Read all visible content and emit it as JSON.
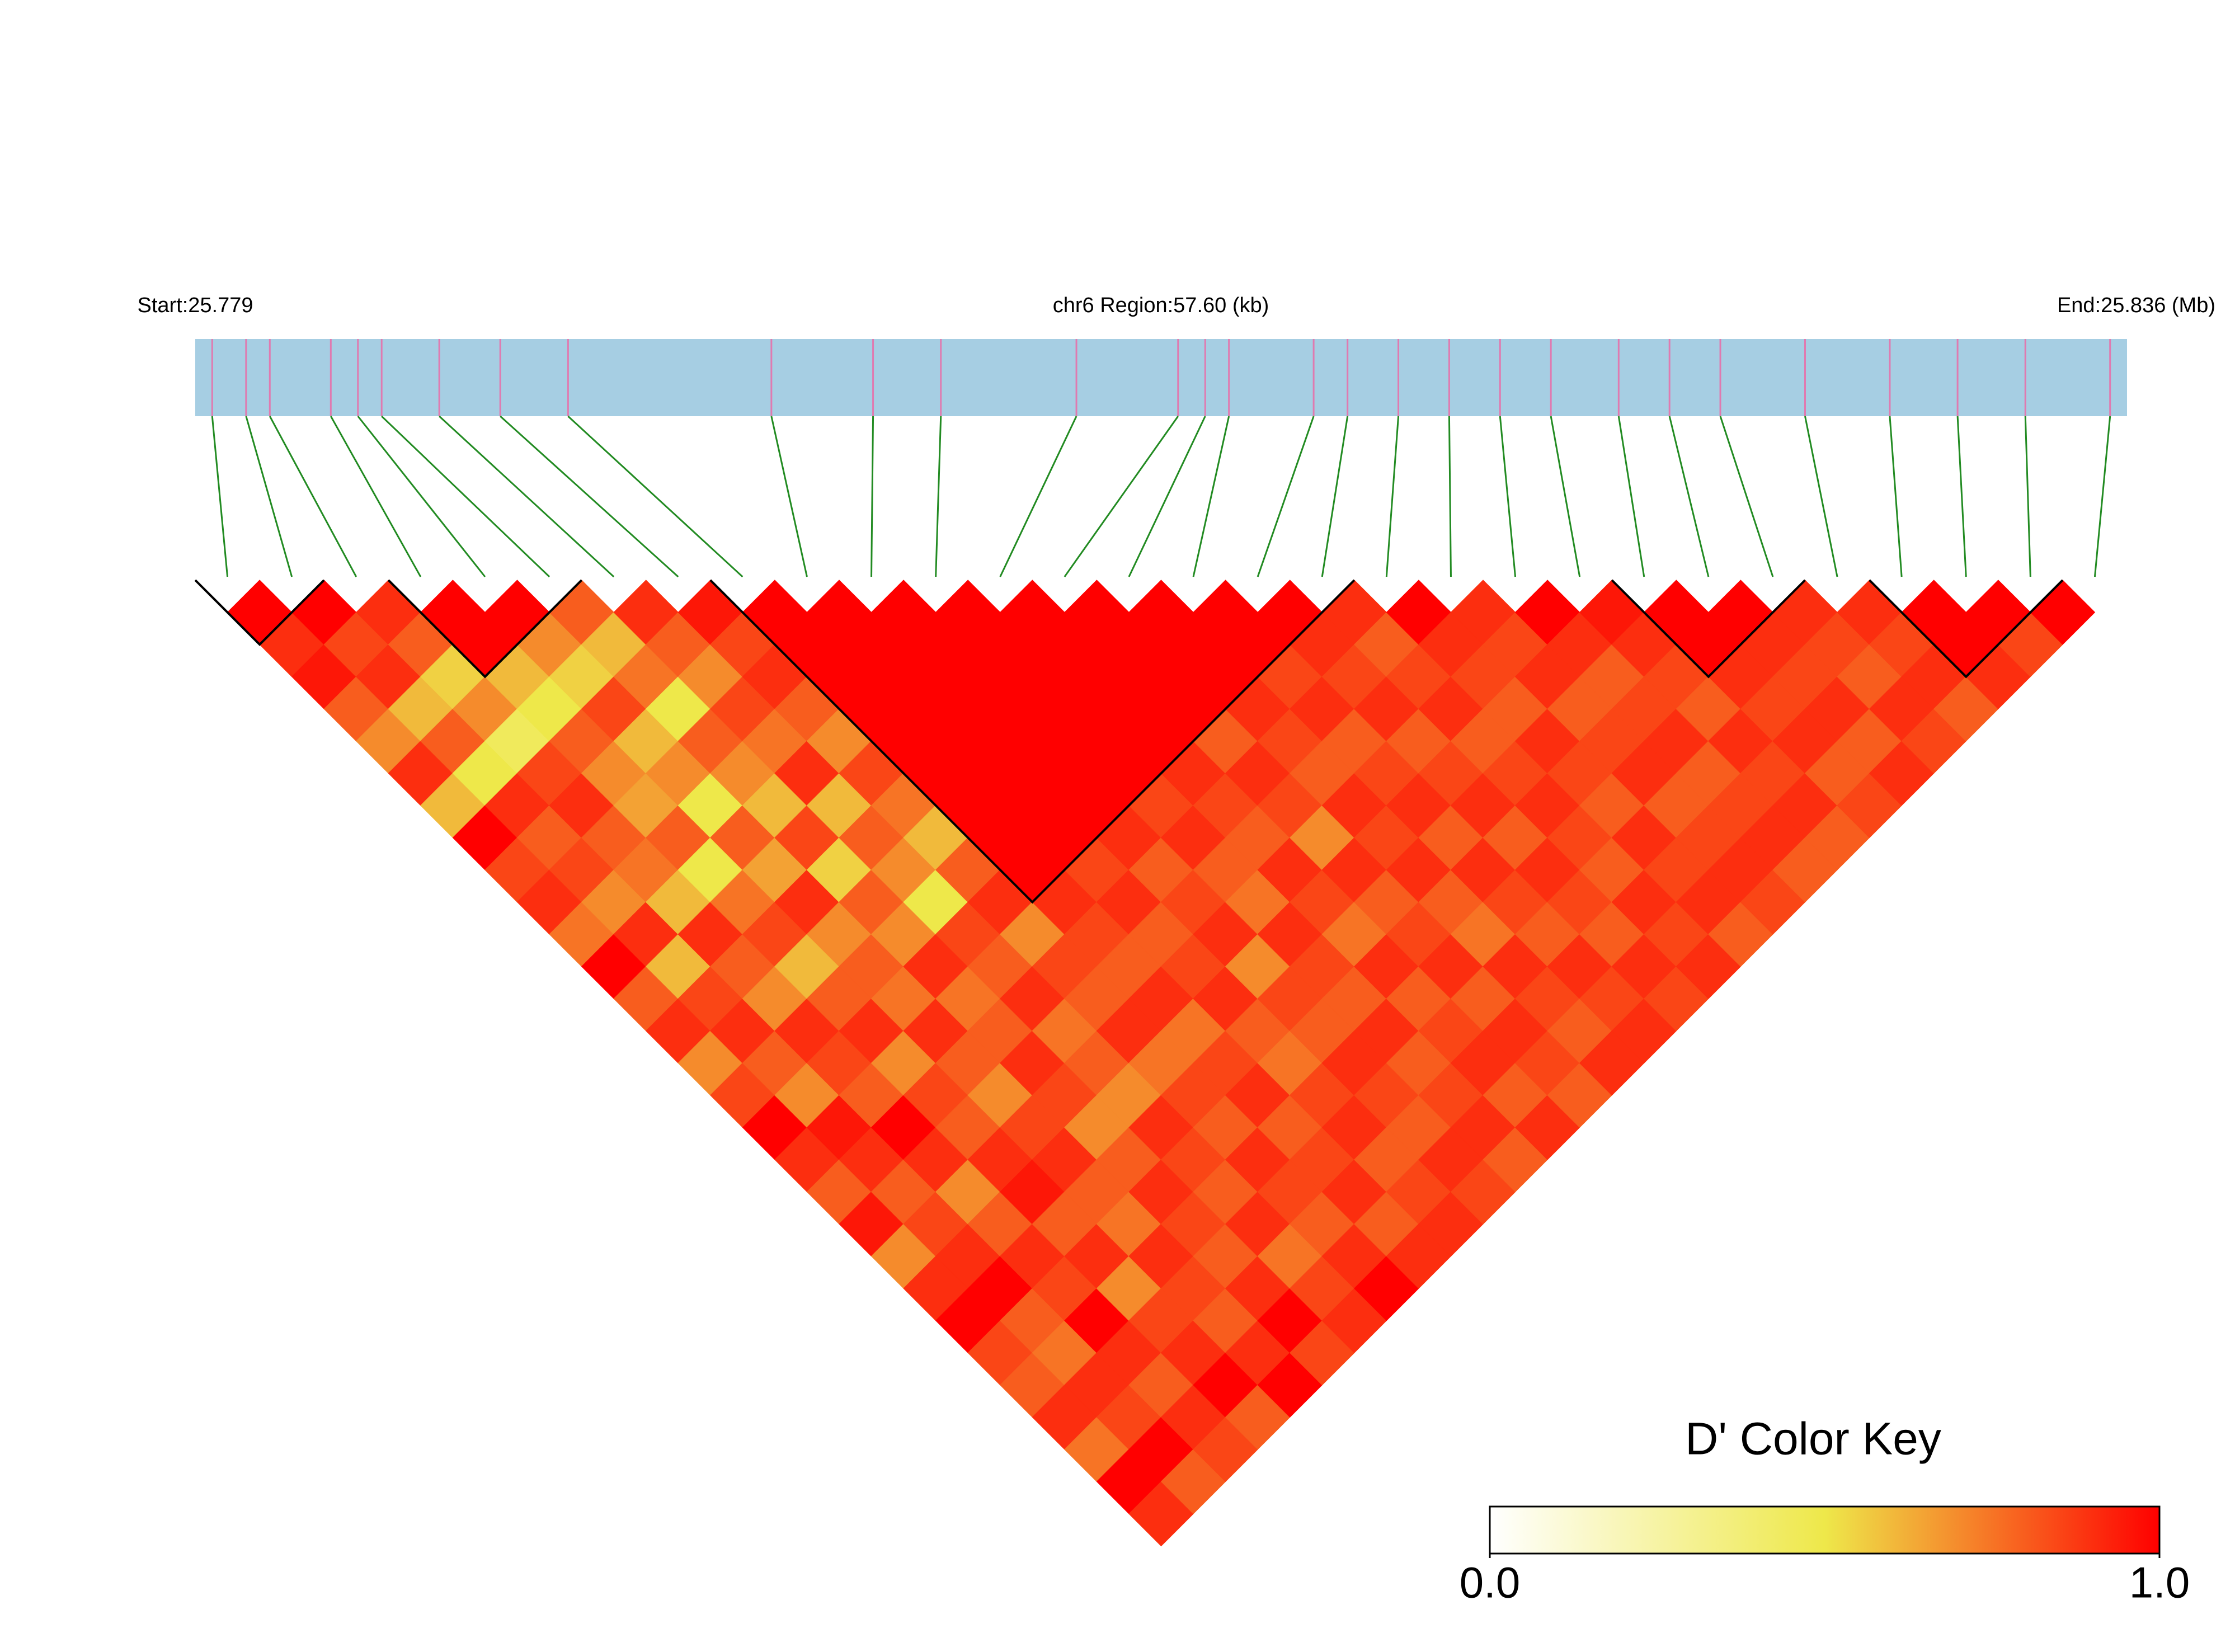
{
  "chart_data": {
    "type": "ld-heatmap",
    "start_label": "Start:25.779",
    "region_label": "chr6 Region:57.60 (kb)",
    "end_label": "End:25.836 (Mb)",
    "xlim": [
      25.779,
      25.836
    ],
    "positions": [
      25.7795,
      25.7805,
      25.7812,
      25.783,
      25.7838,
      25.7845,
      25.7862,
      25.788,
      25.79,
      25.796,
      25.799,
      25.801,
      25.805,
      25.808,
      25.8088,
      25.8095,
      25.812,
      25.813,
      25.8145,
      25.816,
      25.8175,
      25.819,
      25.821,
      25.8225,
      25.824,
      25.8265,
      25.829,
      25.831,
      25.833,
      25.8355
    ],
    "dprime": [
      [
        1,
        0.9,
        0.95,
        0.8,
        0.7,
        0.9,
        0.6,
        1,
        0.85,
        0.9,
        0.75,
        1,
        0.8,
        0.9,
        0.7,
        0.85,
        1,
        0.9,
        0.8,
        0.95,
        0.7,
        0.9,
        1,
        0.85,
        0.8,
        0.9,
        0.75,
        1,
        0.9
      ],
      [
        1,
        0.85,
        0.9,
        0.6,
        0.8,
        0.5,
        0.9,
        0.8,
        0.85,
        0.7,
        0.9,
        0.6,
        0.85,
        0.9,
        0.8,
        0.7,
        0.95,
        0.9,
        0.8,
        0.85,
        0.9,
        1,
        0.8,
        0.75,
        0.9,
        0.85,
        1,
        0.8
      ],
      [
        0.9,
        0.8,
        0.55,
        0.7,
        0.45,
        0.85,
        0.9,
        0.8,
        0.75,
        0.6,
        0.9,
        0.8,
        0.7,
        0.9,
        0.85,
        0.8,
        1,
        0.9,
        0.7,
        0.8,
        0.9,
        0.85,
        1,
        0.9,
        0.8,
        0.9,
        0.85
      ],
      [
        1,
        1,
        0.6,
        0.5,
        0.8,
        0.7,
        0.65,
        0.8,
        0.5,
        0.75,
        0.85,
        0.6,
        0.8,
        0.9,
        0.7,
        0.85,
        0.8,
        0.9,
        0.95,
        0.8,
        0.9,
        0.7,
        0.85,
        0.9,
        1,
        0.8
      ],
      [
        1,
        0.7,
        0.55,
        0.85,
        0.6,
        0.7,
        0.5,
        0.8,
        0.65,
        0.9,
        0.7,
        0.8,
        0.75,
        0.9,
        0.8,
        0.7,
        0.85,
        0.9,
        0.8,
        0.75,
        0.9,
        0.85,
        0.8,
        0.9,
        1
      ],
      [
        0.8,
        0.6,
        0.75,
        0.5,
        0.8,
        0.7,
        0.6,
        0.85,
        0.55,
        0.8,
        0.7,
        0.9,
        0.75,
        0.8,
        0.9,
        0.85,
        0.7,
        0.8,
        0.9,
        0.85,
        0.8,
        0.9,
        1,
        0.85
      ],
      [
        0.9,
        0.8,
        0.7,
        0.85,
        0.75,
        0.9,
        0.6,
        0.8,
        0.7,
        0.5,
        0.85,
        0.8,
        0.9,
        0.75,
        0.8,
        0.7,
        0.9,
        0.85,
        0.8,
        0.9,
        0.75,
        0.85,
        0.9
      ],
      [
        0.95,
        0.85,
        0.9,
        0.8,
        0.7,
        0.85,
        0.75,
        0.6,
        0.8,
        0.9,
        0.7,
        0.85,
        0.8,
        0.9,
        0.75,
        0.85,
        0.8,
        0.9,
        0.85,
        0.8,
        0.9,
        1
      ],
      [
        1,
        1,
        1,
        1,
        1,
        1,
        1,
        1,
        1,
        0.9,
        0.85,
        0.8,
        0.9,
        0.75,
        0.85,
        0.9,
        0.8,
        0.85,
        0.9,
        0.8,
        0.9
      ],
      [
        1,
        1,
        1,
        1,
        1,
        1,
        1,
        1,
        0.85,
        0.9,
        0.8,
        0.85,
        0.9,
        0.8,
        0.75,
        0.85,
        0.9,
        0.8,
        0.85,
        0.9
      ],
      [
        1,
        1,
        1,
        1,
        1,
        1,
        1,
        0.9,
        0.8,
        0.85,
        0.9,
        0.7,
        0.85,
        0.8,
        0.9,
        0.85,
        0.8,
        0.9,
        0.85
      ],
      [
        1,
        1,
        1,
        1,
        1,
        1,
        0.85,
        0.9,
        0.8,
        0.75,
        0.9,
        0.85,
        0.8,
        0.9,
        0.8,
        0.85,
        0.9,
        0.8
      ],
      [
        1,
        1,
        1,
        1,
        1,
        0.9,
        0.85,
        0.8,
        0.9,
        0.85,
        0.75,
        0.9,
        0.8,
        0.85,
        0.9,
        0.8,
        0.9
      ],
      [
        1,
        1,
        1,
        1,
        0.8,
        0.9,
        0.85,
        0.7,
        0.9,
        0.8,
        0.85,
        0.9,
        0.8,
        0.9,
        0.85,
        0.8
      ],
      [
        1,
        1,
        1,
        0.9,
        0.85,
        0.8,
        0.9,
        0.85,
        0.9,
        0.8,
        0.75,
        0.9,
        0.85,
        0.8,
        0.9
      ],
      [
        1,
        1,
        0.85,
        0.9,
        0.8,
        0.85,
        0.9,
        0.8,
        0.9,
        0.85,
        0.8,
        0.9,
        0.85,
        0.9
      ],
      [
        1,
        0.9,
        0.85,
        0.9,
        0.8,
        0.85,
        0.9,
        0.8,
        0.9,
        0.85,
        0.8,
        0.9,
        0.85
      ],
      [
        0.9,
        0.8,
        0.85,
        0.9,
        0.8,
        0.85,
        0.9,
        0.85,
        0.8,
        0.9,
        0.85,
        0.9
      ],
      [
        1,
        0.9,
        0.85,
        0.8,
        0.9,
        0.85,
        0.8,
        0.9,
        0.85,
        0.9,
        0.8
      ],
      [
        0.9,
        0.85,
        0.9,
        0.8,
        0.85,
        0.9,
        0.8,
        0.85,
        0.9,
        0.85
      ],
      [
        1,
        0.9,
        0.8,
        0.85,
        0.9,
        0.8,
        0.85,
        0.9,
        0.8
      ],
      [
        0.95,
        0.9,
        0.85,
        0.8,
        0.9,
        0.85,
        0.9,
        0.8
      ],
      [
        1,
        1,
        0.9,
        0.85,
        0.9,
        0.8,
        0.85
      ],
      [
        1,
        0.9,
        0.85,
        0.9,
        0.8,
        0.9
      ],
      [
        0.9,
        0.85,
        0.8,
        0.9,
        0.85
      ],
      [
        0.9,
        0.85,
        0.9,
        0.8
      ],
      [
        1,
        1,
        0.9
      ],
      [
        1,
        0.85
      ],
      [
        1
      ]
    ],
    "blocks": [
      [
        0,
        1
      ],
      [
        3,
        5
      ],
      [
        8,
        17
      ],
      [
        22,
        24
      ],
      [
        26,
        28
      ]
    ],
    "color_scale": [
      "#ffffff",
      "#eee84a",
      "#ff0000"
    ],
    "bar_color": "#a6cee3",
    "snp_line_color": "#e07ab0",
    "connector_color": "#228b22",
    "key_title": "D' Color Key",
    "key_lim": [
      0,
      1
    ],
    "key_ticks": [
      {
        "value": 0,
        "label": "0.0"
      },
      {
        "value": 1,
        "label": "1.0"
      }
    ]
  }
}
